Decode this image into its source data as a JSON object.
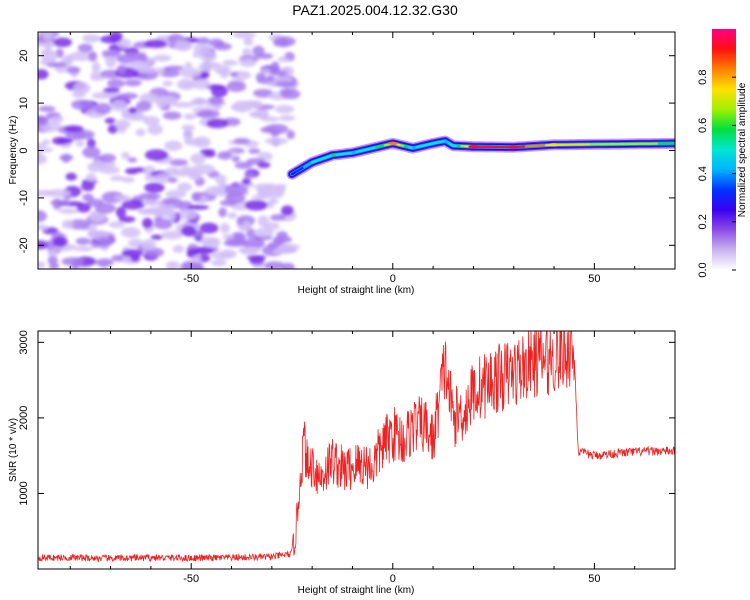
{
  "title": "PAZ1.2025.004.12.32.G30",
  "chart_data": [
    {
      "type": "heatmap",
      "xlabel": "Height of straight line (km)",
      "ylabel": "Frequency (Hz)",
      "xlim": [
        -88,
        70
      ],
      "ylim": [
        -25,
        25
      ],
      "x_ticks": [
        -50,
        0,
        50
      ],
      "y_ticks": [
        -20,
        -10,
        0,
        10,
        20
      ],
      "colorbar": {
        "label": "Normalized spectral amplitude",
        "range": [
          0,
          1
        ],
        "ticks": [
          0.0,
          0.2,
          0.4,
          0.6,
          0.8
        ],
        "colors": [
          "#ffffff",
          "#c9b3f0",
          "#8c4be6",
          "#3b00f0",
          "#0033ff",
          "#00b4ff",
          "#00e6d0",
          "#00e040",
          "#a0f000",
          "#ffe000",
          "#ff8000",
          "#ff1010",
          "#ff0088"
        ]
      },
      "noise_region_x": [
        -88,
        -25
      ],
      "signal_track": {
        "x": [
          -25,
          -20,
          -15,
          -10,
          -5,
          0,
          5,
          10,
          13,
          15,
          20,
          30,
          40,
          50,
          60,
          70
        ],
        "frequency": [
          -5,
          -2.5,
          -1,
          -0.5,
          0.5,
          1.5,
          0.5,
          1.5,
          2,
          1,
          0.8,
          0.7,
          1.2,
          1.3,
          1.4,
          1.5
        ],
        "peak_amplitude": [
          0.25,
          0.5,
          0.55,
          0.45,
          0.5,
          0.8,
          0.45,
          0.5,
          0.45,
          0.5,
          0.9,
          0.92,
          0.75,
          0.7,
          0.65,
          0.6
        ]
      }
    },
    {
      "type": "line",
      "xlabel": "Height of straight line (km)",
      "ylabel": "SNR (10 * v/v)",
      "xlim": [
        -88,
        70
      ],
      "ylim": [
        0,
        3150
      ],
      "x_ticks": [
        -50,
        0,
        50
      ],
      "y_ticks": [
        1000,
        2000,
        3000
      ],
      "color": "#ee2222",
      "series": [
        {
          "x": [
            -88,
            -80,
            -70,
            -60,
            -50,
            -40,
            -30,
            -25,
            -24,
            -23,
            -22,
            -21,
            -20,
            -18,
            -15,
            -12,
            -10,
            -8,
            -5,
            -3,
            0,
            3,
            5,
            8,
            10,
            12,
            13,
            15,
            18,
            20,
            25,
            30,
            35,
            40,
            44,
            45,
            46,
            50,
            55,
            60,
            65,
            70
          ],
          "y": [
            150,
            150,
            140,
            150,
            145,
            150,
            160,
            200,
            500,
            1200,
            1700,
            1300,
            1400,
            1200,
            1450,
            1300,
            1350,
            1400,
            1350,
            1600,
            1800,
            1700,
            1900,
            1900,
            1700,
            2400,
            2700,
            2000,
            2100,
            2350,
            2500,
            2600,
            2750,
            2800,
            2900,
            2850,
            1550,
            1500,
            1530,
            1550,
            1560,
            1560
          ]
        }
      ]
    }
  ]
}
